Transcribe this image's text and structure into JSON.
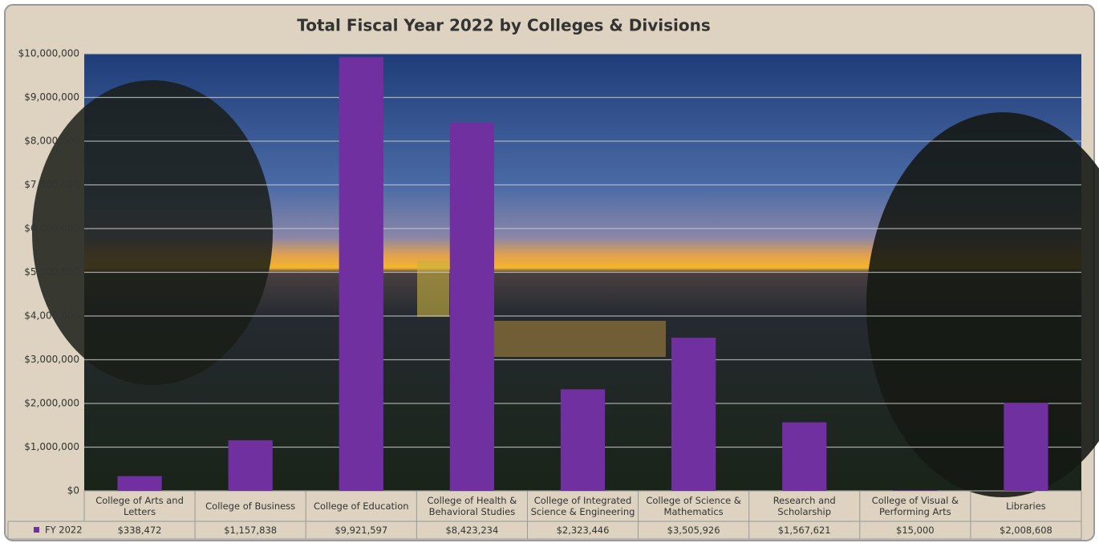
{
  "chart_data": {
    "type": "bar",
    "title": "Total Fiscal Year 2022 by Colleges & Divisions",
    "categories": [
      "College of Arts and Letters",
      "College of Business",
      "College of Education",
      "College of Health & Behavioral Studies",
      "College of Integrated Science & Engineering",
      "College of Science & Mathematics",
      "Research and Scholarship",
      "College of Visual & Performing Arts",
      "Libraries"
    ],
    "series": [
      {
        "name": "FY 2022",
        "color": "#7030a0",
        "values": [
          338472,
          1157838,
          9921597,
          8423234,
          2323446,
          3505926,
          1567621,
          15000,
          2008608
        ],
        "value_labels": [
          "$338,472",
          "$1,157,838",
          "$9,921,597",
          "$8,423,234",
          "$2,323,446",
          "$3,505,926",
          "$1,567,621",
          "$15,000",
          "$2,008,608"
        ]
      }
    ],
    "ylim": [
      0,
      10000000
    ],
    "yticks": [
      {
        "value": 0,
        "label": "$0"
      },
      {
        "value": 1000000,
        "label": "$1,000,000"
      },
      {
        "value": 2000000,
        "label": "$2,000,000"
      },
      {
        "value": 3000000,
        "label": "$3,000,000"
      },
      {
        "value": 4000000,
        "label": "$4,000,000"
      },
      {
        "value": 5000000,
        "label": "$5,000,000"
      },
      {
        "value": 6000000,
        "label": "$6,000,000"
      },
      {
        "value": 7000000,
        "label": "$7,000,000"
      },
      {
        "value": 8000000,
        "label": "$8,000,000"
      },
      {
        "value": 9000000,
        "label": "$9,000,000"
      },
      {
        "value": 10000000,
        "label": "$10,000,000"
      }
    ],
    "grid": true
  }
}
